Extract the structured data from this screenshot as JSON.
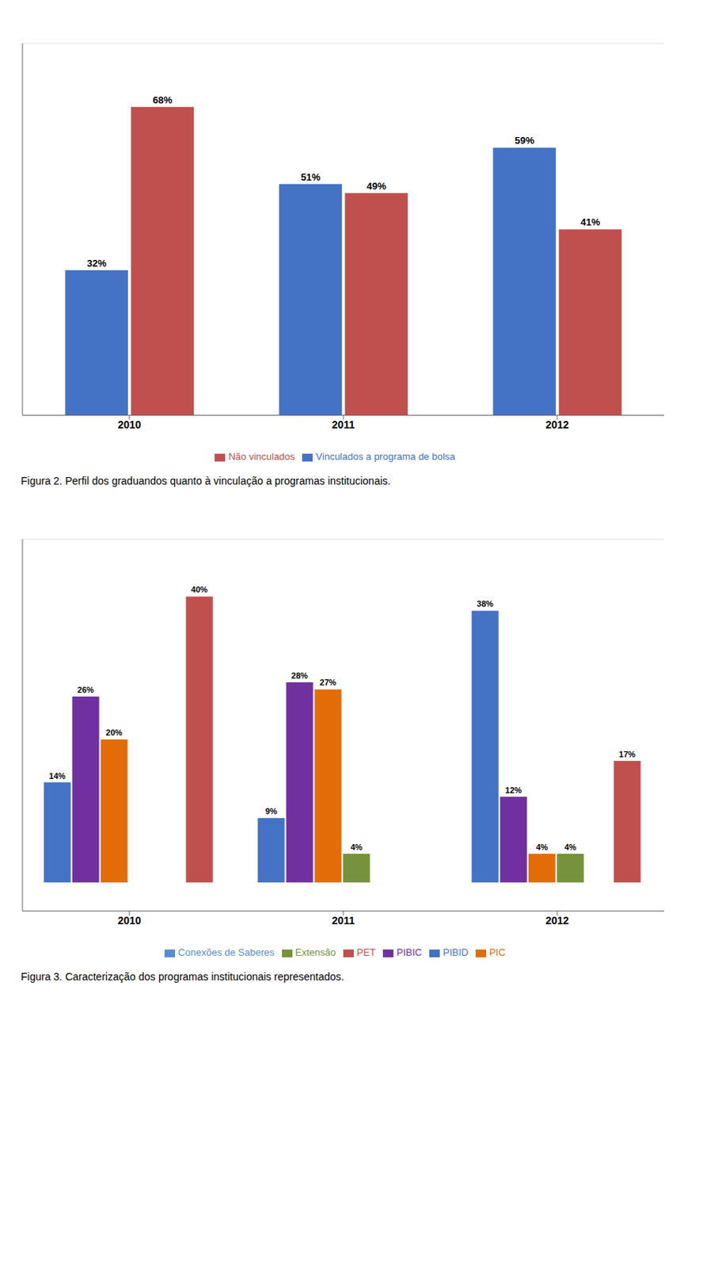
{
  "chart_data": [
    {
      "type": "bar",
      "title": "Figura 2. Perfil dos graduandos quanto à vinculação a programas institucionais.",
      "categories": [
        "2010",
        "2011",
        "2012"
      ],
      "series": [
        {
          "name": "Vinculados a programa de bolsa",
          "color": "#4472C4",
          "values": [
            32,
            51,
            59
          ],
          "value_labels": [
            "32%",
            "51%",
            "59%"
          ]
        },
        {
          "name": "Não vinculados",
          "color": "#C0504D",
          "values": [
            68,
            49,
            41
          ],
          "value_labels": [
            "68%",
            "49%",
            "41%"
          ]
        }
      ],
      "ylim": [
        0,
        82
      ],
      "yticks": [
        0,
        10,
        20,
        30,
        40,
        50,
        60,
        70,
        80
      ],
      "grid": true,
      "legend": "bottom",
      "data_labels": true,
      "tick_labels": "x"
    },
    {
      "type": "bar",
      "title": "Figura 3. Caracterização dos programas institucionais representados.",
      "categories": [
        "2010",
        "2011",
        "2012"
      ],
      "series": [
        {
          "name": "PIBID",
          "color": "#4472C4",
          "values": [
            14,
            9,
            38
          ],
          "value_labels": [
            "14%",
            "9%",
            "38%"
          ]
        },
        {
          "name": "PIBIC",
          "color": "#7030A0",
          "values": [
            26,
            28,
            12
          ],
          "value_labels": [
            "26%",
            "28%",
            "12%"
          ]
        },
        {
          "name": "PIC",
          "color": "#E36C09",
          "values": [
            20,
            27,
            4
          ],
          "value_labels": [
            "20%",
            "27%",
            "4%"
          ]
        },
        {
          "name": "Extensão",
          "color": "#76923C",
          "values": [
            0,
            4,
            4
          ],
          "value_labels": [
            "0",
            "4%",
            "4%"
          ]
        },
        {
          "name": "Conexões de Saberes",
          "color": "#558ED5",
          "values": [
            0,
            0,
            0
          ],
          "value_labels": [
            "0",
            "0",
            "0"
          ]
        },
        {
          "name": "PET",
          "color": "#C0504D",
          "values": [
            40,
            0,
            17
          ],
          "value_labels": [
            "40%",
            "0",
            "17%"
          ]
        }
      ],
      "ylim": [
        -4,
        48
      ],
      "yticks": [
        0,
        10,
        20,
        30,
        40
      ],
      "grid": true,
      "legend": "bottom",
      "data_labels": true,
      "tick_labels": "x"
    }
  ]
}
